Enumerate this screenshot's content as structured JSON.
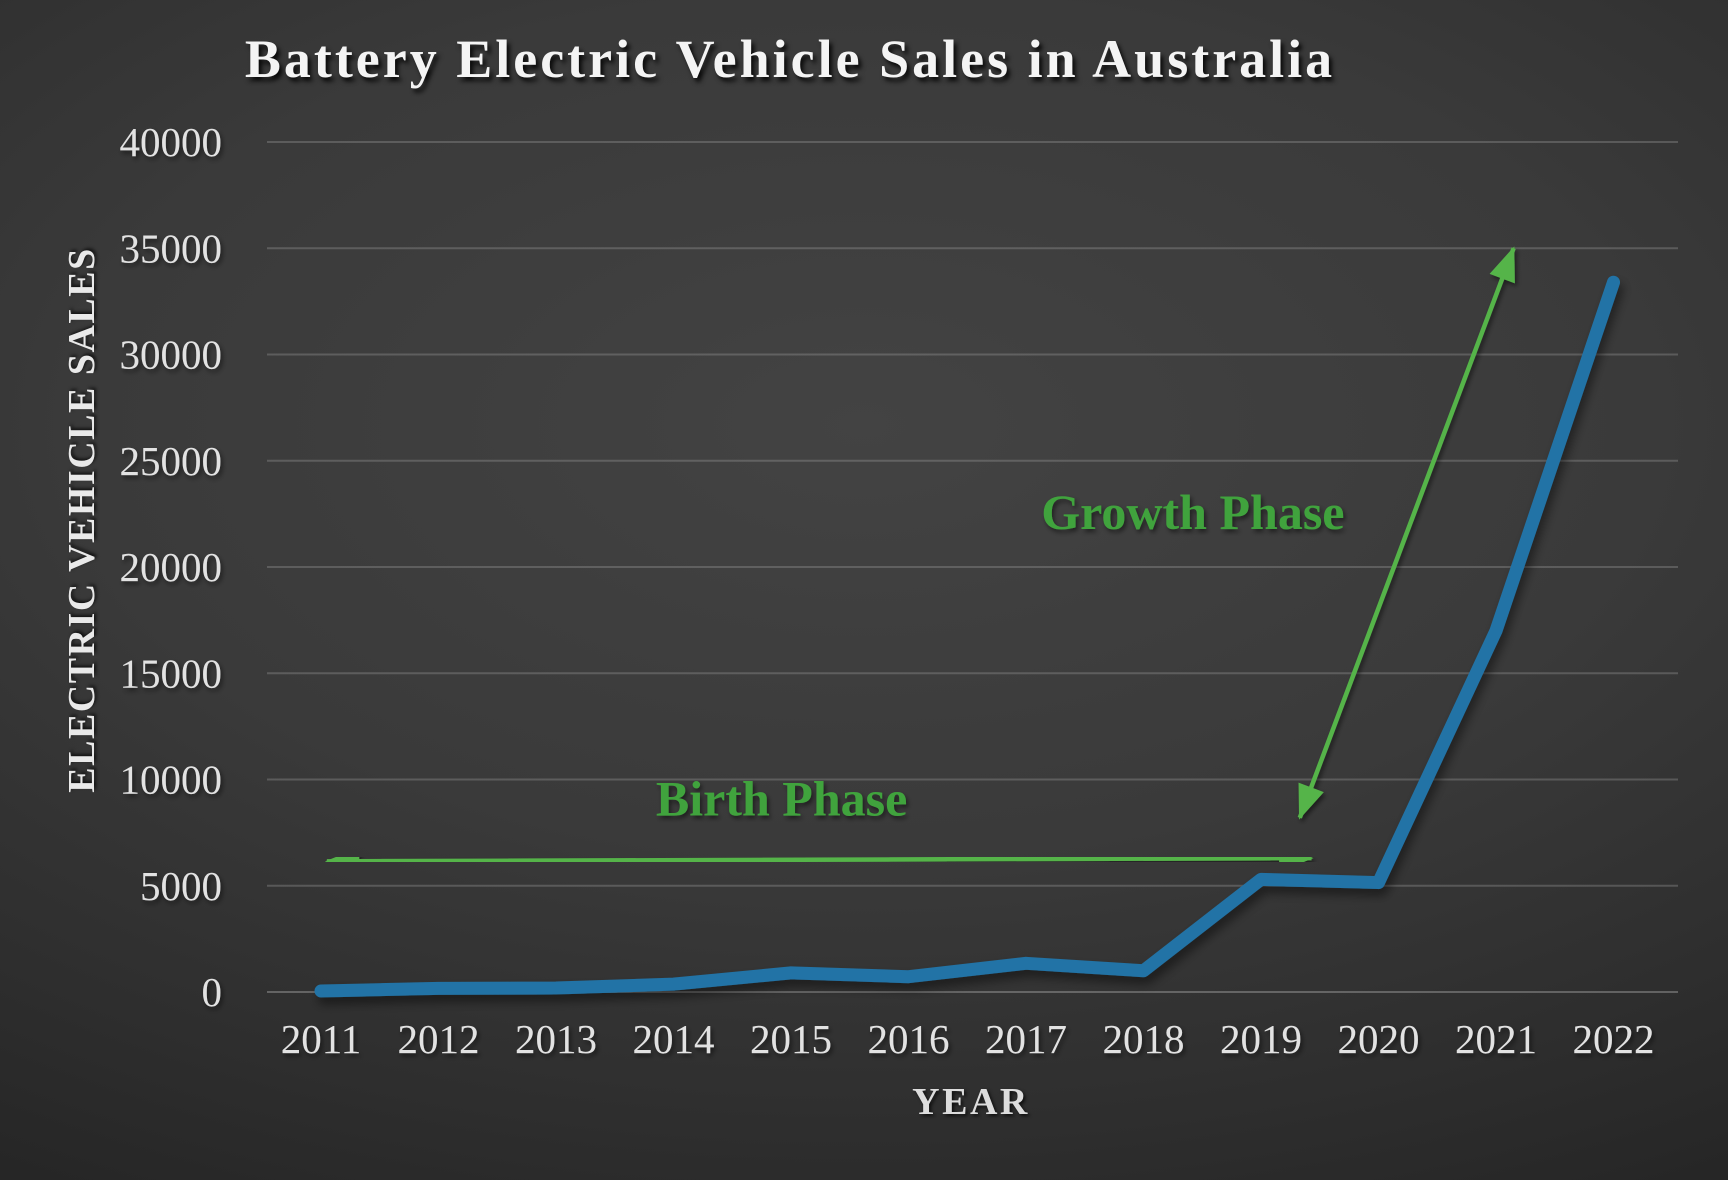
{
  "title": "Battery Electric Vehicle Sales in Australia",
  "colors": {
    "background": "#333333",
    "series_blue": "#2173a6",
    "arrow_green": "#55b44a",
    "label_green": "#3fa33c",
    "text_light": "#e2e2e2"
  },
  "chart_data": {
    "type": "line",
    "title": "Battery Electric Vehicle Sales in Australia",
    "xlabel": "YEAR",
    "ylabel": "ELECTRIC VEHICLE SALES",
    "x": [
      2011,
      2012,
      2013,
      2014,
      2015,
      2016,
      2017,
      2018,
      2019,
      2020,
      2021,
      2022
    ],
    "series": [
      {
        "name": "Battery Electric Vehicle Sales",
        "color": "#2173a6",
        "values": [
          49,
          170,
          190,
          370,
          900,
          720,
          1350,
          1000,
          5300,
          5150,
          17000,
          33400
        ]
      }
    ],
    "ylim": [
      0,
      40000
    ],
    "yticks": [
      0,
      5000,
      10000,
      15000,
      20000,
      25000,
      30000,
      35000,
      40000
    ],
    "grid": true,
    "legend": "none",
    "annotations": [
      {
        "id": "birth-phase",
        "label": "Birth Phase",
        "label_color": "#3fa33c",
        "arrow_color": "#55b44a",
        "arrow": {
          "from": {
            "year": 2011.05,
            "value": 6150
          },
          "to": {
            "year": 2019.43,
            "value": 6300
          }
        },
        "label_pos": {
          "year": 2014.92,
          "value": 9100
        }
      },
      {
        "id": "growth-phase",
        "label": "Growth Phase",
        "label_color": "#3fa33c",
        "arrow_color": "#55b44a",
        "arrow": {
          "from": {
            "year": 2019.33,
            "value": 8200
          },
          "to": {
            "year": 2021.15,
            "value": 35000
          }
        },
        "label_pos": {
          "year": 2018.42,
          "value": 22600
        }
      }
    ]
  }
}
